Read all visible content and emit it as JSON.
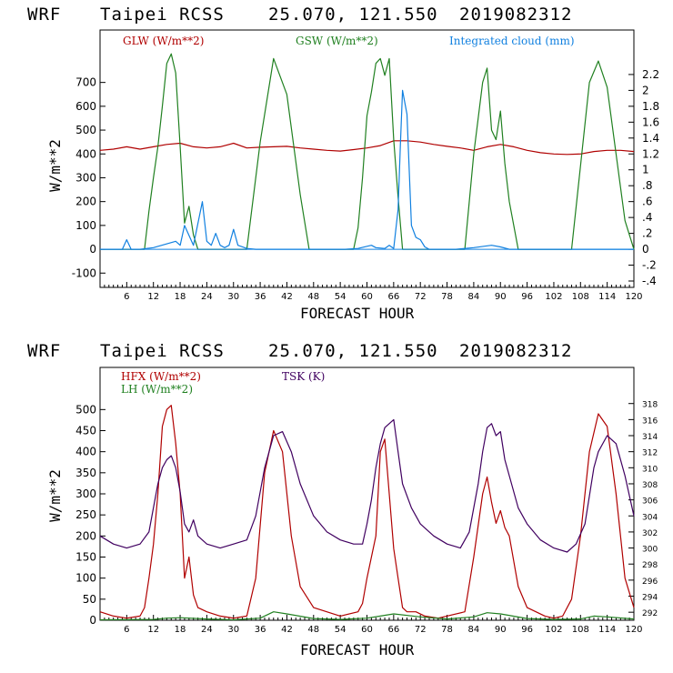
{
  "charts": [
    {
      "title": {
        "model": "WRF",
        "station": "Taipei RCSS",
        "coords": "25.070, 121.550",
        "run": "2019082312"
      },
      "xlabel": "FORECAST HOUR",
      "ylabel": "W/m**2",
      "legend": [
        {
          "label": "GLW (W/m**2)",
          "color": "#b00000"
        },
        {
          "label": "GSW (W/m**2)",
          "color": "#208020"
        },
        {
          "label": "Integrated cloud (mm)",
          "color": "#1080e0"
        }
      ]
    },
    {
      "title": {
        "model": "WRF",
        "station": "Taipei RCSS",
        "coords": "25.070, 121.550",
        "run": "2019082312"
      },
      "xlabel": "FORECAST HOUR",
      "ylabel": "W/m**2",
      "legend": [
        {
          "label": "HFX (W/m**2)",
          "color": "#b00000"
        },
        {
          "label": "LH  (W/m**2)",
          "color": "#208020"
        },
        {
          "label": "TSK (K)",
          "color": "#400060"
        }
      ]
    }
  ],
  "chart_data": [
    {
      "type": "line",
      "title": "WRF Taipei RCSS 25.070, 121.550 2019082312",
      "xlabel": "FORECAST HOUR",
      "ylabel": "W/m**2",
      "xlim": [
        0,
        120
      ],
      "ylim": [
        -160,
        920
      ],
      "y2lim": [
        -0.48,
        2.76
      ],
      "xticks": [
        6,
        12,
        18,
        24,
        30,
        36,
        42,
        48,
        54,
        60,
        66,
        72,
        78,
        84,
        90,
        96,
        102,
        108,
        114,
        120
      ],
      "yticks": [
        -100,
        0,
        100,
        200,
        300,
        400,
        500,
        600,
        700
      ],
      "y2ticks": [
        "-.4",
        "-.2",
        "0",
        ".2",
        ".4",
        ".6",
        ".8",
        "1",
        "1.2",
        "1.4",
        "1.6",
        "1.8",
        "2",
        "2.2"
      ],
      "y2tick_values": [
        -0.4,
        -0.2,
        0,
        0.2,
        0.4,
        0.6,
        0.8,
        1.0,
        1.2,
        1.4,
        1.6,
        1.8,
        2.0,
        2.2
      ],
      "series": [
        {
          "name": "GLW (W/m**2)",
          "axis": "left",
          "color": "#b00000",
          "x": [
            0,
            3,
            6,
            9,
            12,
            15,
            18,
            21,
            24,
            27,
            30,
            33,
            36,
            39,
            42,
            45,
            48,
            51,
            54,
            57,
            60,
            63,
            66,
            69,
            72,
            75,
            78,
            81,
            84,
            87,
            90,
            93,
            96,
            99,
            102,
            105,
            108,
            111,
            114,
            117,
            120
          ],
          "y": [
            415,
            420,
            430,
            420,
            430,
            440,
            445,
            430,
            425,
            430,
            445,
            425,
            428,
            430,
            432,
            425,
            420,
            415,
            412,
            418,
            425,
            435,
            455,
            455,
            450,
            440,
            432,
            425,
            415,
            430,
            440,
            430,
            415,
            405,
            400,
            398,
            400,
            410,
            415,
            415,
            410
          ]
        },
        {
          "name": "GSW (W/m**2)",
          "axis": "left",
          "color": "#208020",
          "x": [
            0,
            10,
            11,
            12,
            13,
            14,
            15,
            16,
            17,
            18,
            19,
            20,
            21,
            22,
            33,
            36,
            39,
            42,
            45,
            47,
            57,
            58,
            59,
            60,
            61,
            62,
            63,
            64,
            65,
            66,
            67,
            68,
            69,
            82,
            84,
            86,
            87,
            88,
            89,
            90,
            91,
            92,
            94,
            106,
            108,
            110,
            112,
            114,
            116,
            118,
            120
          ],
          "y": [
            0,
            0,
            160,
            300,
            430,
            600,
            780,
            820,
            740,
            430,
            110,
            180,
            60,
            0,
            0,
            450,
            800,
            650,
            230,
            0,
            0,
            90,
            300,
            560,
            660,
            780,
            800,
            730,
            800,
            460,
            220,
            0,
            0,
            0,
            400,
            700,
            760,
            500,
            460,
            580,
            360,
            200,
            0,
            0,
            350,
            700,
            790,
            680,
            400,
            120,
            0
          ]
        },
        {
          "name": "Integrated cloud (mm)",
          "axis": "right",
          "color": "#1080e0",
          "x": [
            0,
            5,
            6,
            7,
            9,
            12,
            17,
            18,
            19,
            21,
            23,
            24,
            25,
            26,
            27,
            28,
            29,
            30,
            31,
            33,
            35,
            40,
            47,
            55,
            58,
            61,
            62,
            64,
            65,
            66,
            67,
            67.5,
            68,
            69,
            70,
            71,
            72,
            73,
            74,
            80,
            84,
            88,
            90,
            92,
            96,
            100,
            110,
            120
          ],
          "y": [
            0,
            0,
            0.12,
            0,
            0,
            0.02,
            0.1,
            0.05,
            0.3,
            0.05,
            0.6,
            0.1,
            0.05,
            0.2,
            0.05,
            0.02,
            0.05,
            0.25,
            0.05,
            0.01,
            0,
            0,
            0,
            0,
            0.01,
            0.05,
            0.02,
            0.01,
            0.05,
            0.01,
            0.5,
            1.3,
            2.0,
            1.7,
            0.3,
            0.15,
            0.12,
            0.03,
            0,
            0,
            0.02,
            0.05,
            0.03,
            0,
            0,
            0,
            0,
            0
          ]
        }
      ]
    },
    {
      "type": "line",
      "title": "WRF Taipei RCSS 25.070, 121.550 2019082312",
      "xlabel": "FORECAST HOUR",
      "ylabel": "W/m**2",
      "xlim": [
        0,
        120
      ],
      "ylim": [
        0,
        600
      ],
      "y2lim": [
        291,
        322.5
      ],
      "xticks": [
        6,
        12,
        18,
        24,
        30,
        36,
        42,
        48,
        54,
        60,
        66,
        72,
        78,
        84,
        90,
        96,
        102,
        108,
        114,
        120
      ],
      "yticks": [
        0,
        50,
        100,
        150,
        200,
        250,
        300,
        350,
        400,
        450,
        500
      ],
      "y2ticks": [
        "292",
        "294",
        "296",
        "298",
        "300",
        "302",
        "304",
        "306",
        "308",
        "310",
        "312",
        "314",
        "316",
        "318"
      ],
      "y2tick_values": [
        292,
        294,
        296,
        298,
        300,
        302,
        304,
        306,
        308,
        310,
        312,
        314,
        316,
        318
      ],
      "series": [
        {
          "name": "HFX (W/m**2)",
          "axis": "left",
          "color": "#b00000",
          "x": [
            0,
            3,
            6,
            9,
            10,
            11,
            12,
            13,
            14,
            15,
            16,
            17,
            18,
            19,
            20,
            21,
            22,
            24,
            27,
            30,
            33,
            35,
            37,
            39,
            41,
            43,
            45,
            48,
            54,
            58,
            59,
            60,
            61,
            62,
            63,
            64,
            65,
            66,
            67,
            68,
            69,
            71,
            73,
            76,
            82,
            84,
            86,
            87,
            88,
            89,
            90,
            91,
            92,
            94,
            96,
            100,
            102,
            104,
            106,
            108,
            110,
            112,
            114,
            116,
            118,
            120
          ],
          "y": [
            20,
            10,
            5,
            10,
            30,
            100,
            180,
            300,
            460,
            500,
            510,
            420,
            300,
            100,
            150,
            60,
            30,
            20,
            10,
            5,
            10,
            100,
            350,
            450,
            400,
            200,
            80,
            30,
            10,
            20,
            40,
            100,
            150,
            200,
            400,
            430,
            300,
            170,
            100,
            30,
            20,
            20,
            10,
            5,
            20,
            150,
            300,
            340,
            280,
            230,
            260,
            220,
            200,
            80,
            30,
            10,
            5,
            10,
            50,
            200,
            400,
            490,
            460,
            300,
            100,
            30
          ]
        },
        {
          "name": "LH  (W/m**2)",
          "axis": "left",
          "color": "#208020",
          "x": [
            0,
            12,
            15,
            18,
            24,
            30,
            36,
            39,
            42,
            48,
            54,
            60,
            63,
            66,
            72,
            78,
            84,
            87,
            90,
            96,
            102,
            108,
            111,
            114,
            120
          ],
          "y": [
            1,
            2,
            5,
            6,
            3,
            1,
            5,
            20,
            15,
            4,
            2,
            5,
            10,
            15,
            8,
            3,
            8,
            18,
            15,
            4,
            2,
            3,
            10,
            8,
            3
          ]
        },
        {
          "name": "TSK (K)",
          "axis": "right",
          "color": "#400060",
          "x": [
            0,
            3,
            6,
            9,
            11,
            12,
            13,
            14,
            15,
            16,
            17,
            18,
            19,
            20,
            21,
            22,
            24,
            27,
            30,
            33,
            35,
            37,
            39,
            41,
            43,
            45,
            48,
            51,
            54,
            57,
            59,
            60,
            61,
            62,
            63,
            64,
            65,
            66,
            67,
            68,
            70,
            72,
            75,
            78,
            81,
            83,
            85,
            86,
            87,
            88,
            89,
            90,
            91,
            92,
            94,
            96,
            99,
            102,
            105,
            107,
            109,
            111,
            112,
            114,
            116,
            118,
            120
          ],
          "y": [
            301.5,
            300.5,
            300,
            300.5,
            302,
            305,
            308,
            310,
            311,
            311.5,
            310,
            307,
            303,
            302,
            303.5,
            301.5,
            300.5,
            300,
            300.5,
            301,
            304,
            310,
            314,
            314.5,
            312,
            308,
            304,
            302,
            301,
            300.5,
            300.5,
            303,
            306,
            310,
            313,
            315,
            315.5,
            316,
            312,
            308,
            305,
            303,
            301.5,
            300.5,
            300,
            302,
            308,
            312,
            315,
            315.5,
            314,
            314.5,
            311,
            309,
            305,
            303,
            301,
            300,
            299.5,
            300.5,
            303,
            310,
            312,
            314,
            313,
            309,
            304
          ]
        }
      ]
    }
  ]
}
